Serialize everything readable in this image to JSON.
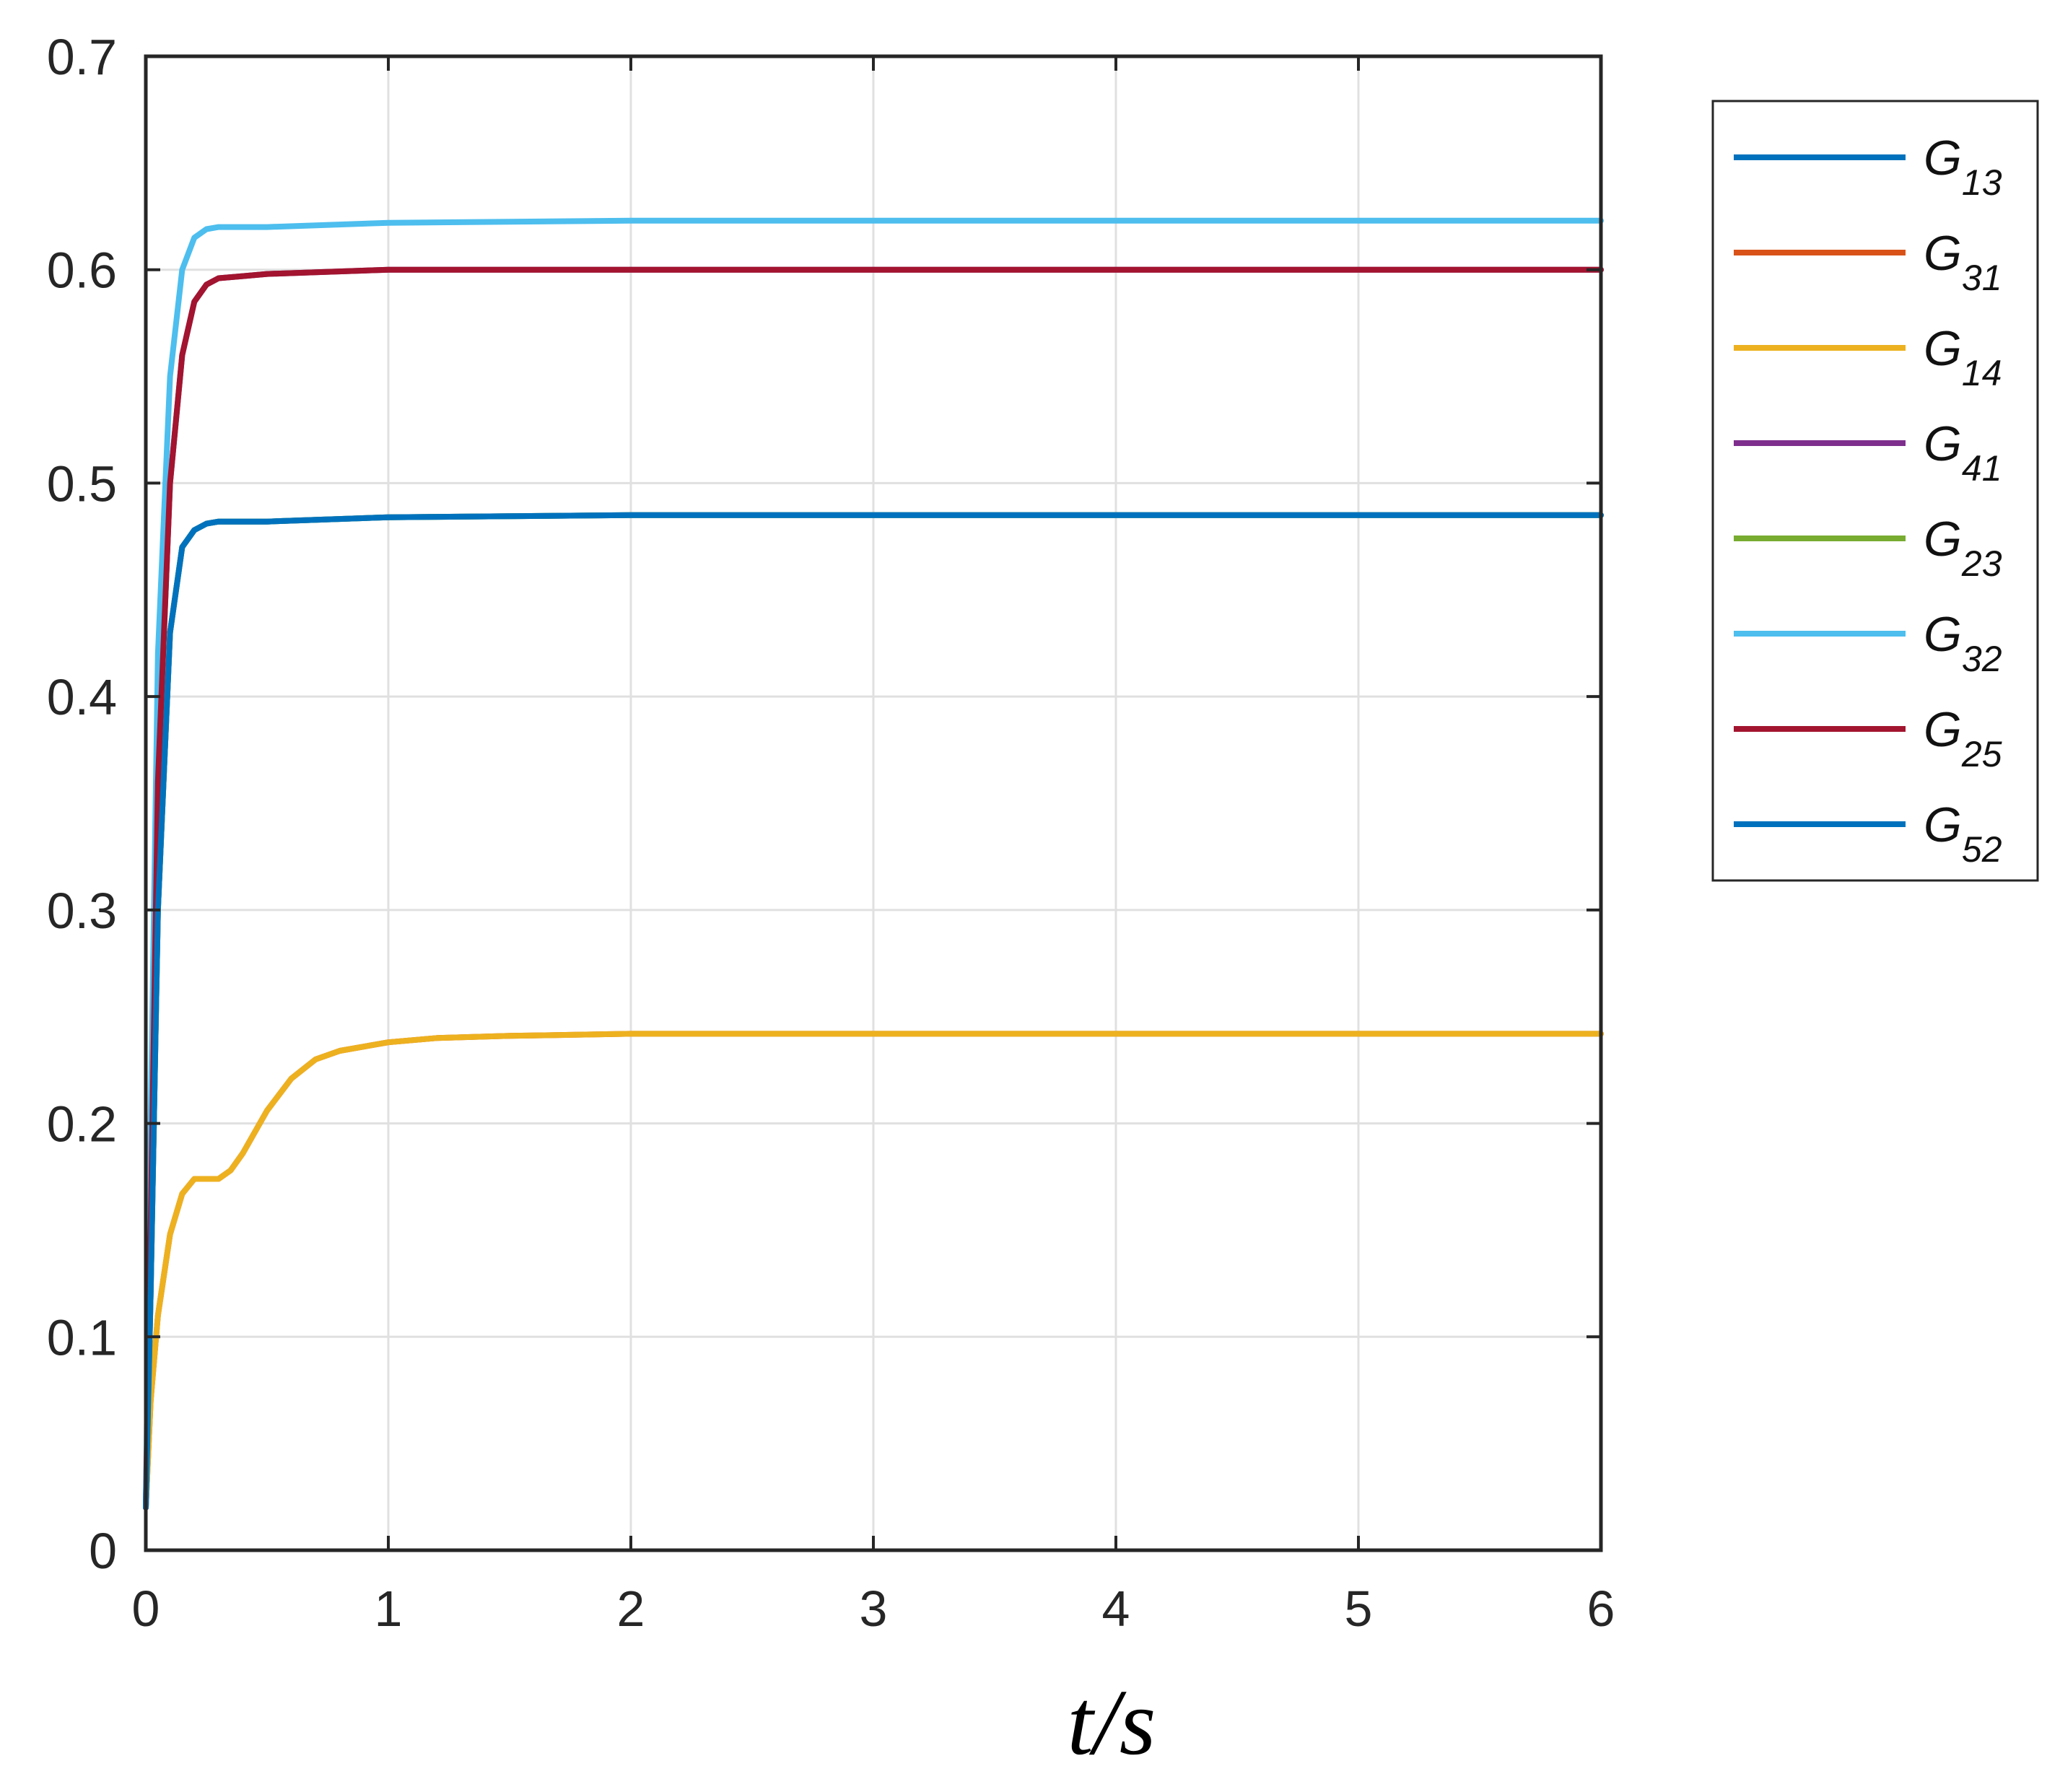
{
  "chart_data": {
    "type": "line",
    "title": "",
    "xlabel": "t/s",
    "ylabel": "",
    "xlim": [
      0,
      6
    ],
    "ylim": [
      0,
      0.7
    ],
    "grid": true,
    "legend_position": "outside-right-top",
    "x_ticks": [
      "0",
      "1",
      "2",
      "3",
      "4",
      "5",
      "6"
    ],
    "y_ticks": [
      "0",
      "0.1",
      "0.2",
      "0.3",
      "0.4",
      "0.5",
      "0.6",
      "0.7"
    ],
    "series": [
      {
        "name": "G",
        "sub": "13",
        "color": "#0072BD",
        "x": [
          0,
          0.02,
          0.05,
          0.1,
          0.15,
          0.2,
          0.25,
          0.3,
          0.4,
          0.5,
          1.0,
          2.0,
          6.0
        ],
        "y": [
          0.02,
          0.12,
          0.3,
          0.43,
          0.47,
          0.478,
          0.481,
          0.482,
          0.482,
          0.482,
          0.484,
          0.485,
          0.485
        ]
      },
      {
        "name": "G",
        "sub": "31",
        "color": "#D95319",
        "x": [
          0,
          0.02,
          0.05,
          0.1,
          0.15,
          0.2,
          0.25,
          0.3,
          0.35,
          0.4,
          0.5,
          0.6,
          0.7,
          0.8,
          1.0,
          1.2,
          1.5,
          2.0,
          6.0
        ],
        "y": [
          0.02,
          0.07,
          0.11,
          0.148,
          0.167,
          0.174,
          0.174,
          0.174,
          0.178,
          0.186,
          0.206,
          0.221,
          0.23,
          0.234,
          0.238,
          0.24,
          0.241,
          0.242,
          0.242
        ]
      },
      {
        "name": "G",
        "sub": "14",
        "color": "#EDB120",
        "x": [
          0,
          0.02,
          0.05,
          0.1,
          0.15,
          0.2,
          0.25,
          0.3,
          0.35,
          0.4,
          0.5,
          0.6,
          0.7,
          0.8,
          1.0,
          1.2,
          1.5,
          2.0,
          6.0
        ],
        "y": [
          0.02,
          0.07,
          0.11,
          0.148,
          0.167,
          0.174,
          0.174,
          0.174,
          0.178,
          0.186,
          0.206,
          0.221,
          0.23,
          0.234,
          0.238,
          0.24,
          0.241,
          0.242,
          0.242
        ]
      },
      {
        "name": "G",
        "sub": "41",
        "color": "#7E2F8E",
        "x": [
          0,
          0.02,
          0.05,
          0.1,
          0.15,
          0.2,
          0.25,
          0.3,
          0.4,
          0.5,
          1.0,
          2.0,
          6.0
        ],
        "y": [
          0.02,
          0.15,
          0.36,
          0.5,
          0.56,
          0.585,
          0.593,
          0.596,
          0.597,
          0.598,
          0.6,
          0.6,
          0.6
        ]
      },
      {
        "name": "G",
        "sub": "23",
        "color": "#77AC30",
        "x": [
          0,
          0.02,
          0.05,
          0.1,
          0.15,
          0.2,
          0.25,
          0.3,
          0.4,
          0.5,
          1.0,
          2.0,
          6.0
        ],
        "y": [
          0.02,
          0.12,
          0.3,
          0.43,
          0.47,
          0.478,
          0.481,
          0.482,
          0.482,
          0.482,
          0.484,
          0.485,
          0.485
        ]
      },
      {
        "name": "G",
        "sub": "32",
        "color": "#4DBEEE",
        "x": [
          0,
          0.02,
          0.05,
          0.1,
          0.15,
          0.2,
          0.25,
          0.3,
          0.4,
          0.5,
          1.0,
          2.0,
          6.0
        ],
        "y": [
          0.02,
          0.2,
          0.42,
          0.55,
          0.6,
          0.615,
          0.619,
          0.62,
          0.62,
          0.62,
          0.622,
          0.623,
          0.623
        ]
      },
      {
        "name": "G",
        "sub": "25",
        "color": "#A2142F",
        "x": [
          0,
          0.02,
          0.05,
          0.1,
          0.15,
          0.2,
          0.25,
          0.3,
          0.4,
          0.5,
          1.0,
          2.0,
          6.0
        ],
        "y": [
          0.02,
          0.15,
          0.36,
          0.5,
          0.56,
          0.585,
          0.593,
          0.596,
          0.597,
          0.598,
          0.6,
          0.6,
          0.6
        ]
      },
      {
        "name": "G",
        "sub": "52",
        "color": "#0072BD",
        "x": [
          0,
          0.02,
          0.05,
          0.1,
          0.15,
          0.2,
          0.25,
          0.3,
          0.4,
          0.5,
          1.0,
          2.0,
          6.0
        ],
        "y": [
          0.02,
          0.12,
          0.3,
          0.43,
          0.47,
          0.478,
          0.481,
          0.482,
          0.482,
          0.482,
          0.484,
          0.485,
          0.485
        ]
      }
    ]
  }
}
